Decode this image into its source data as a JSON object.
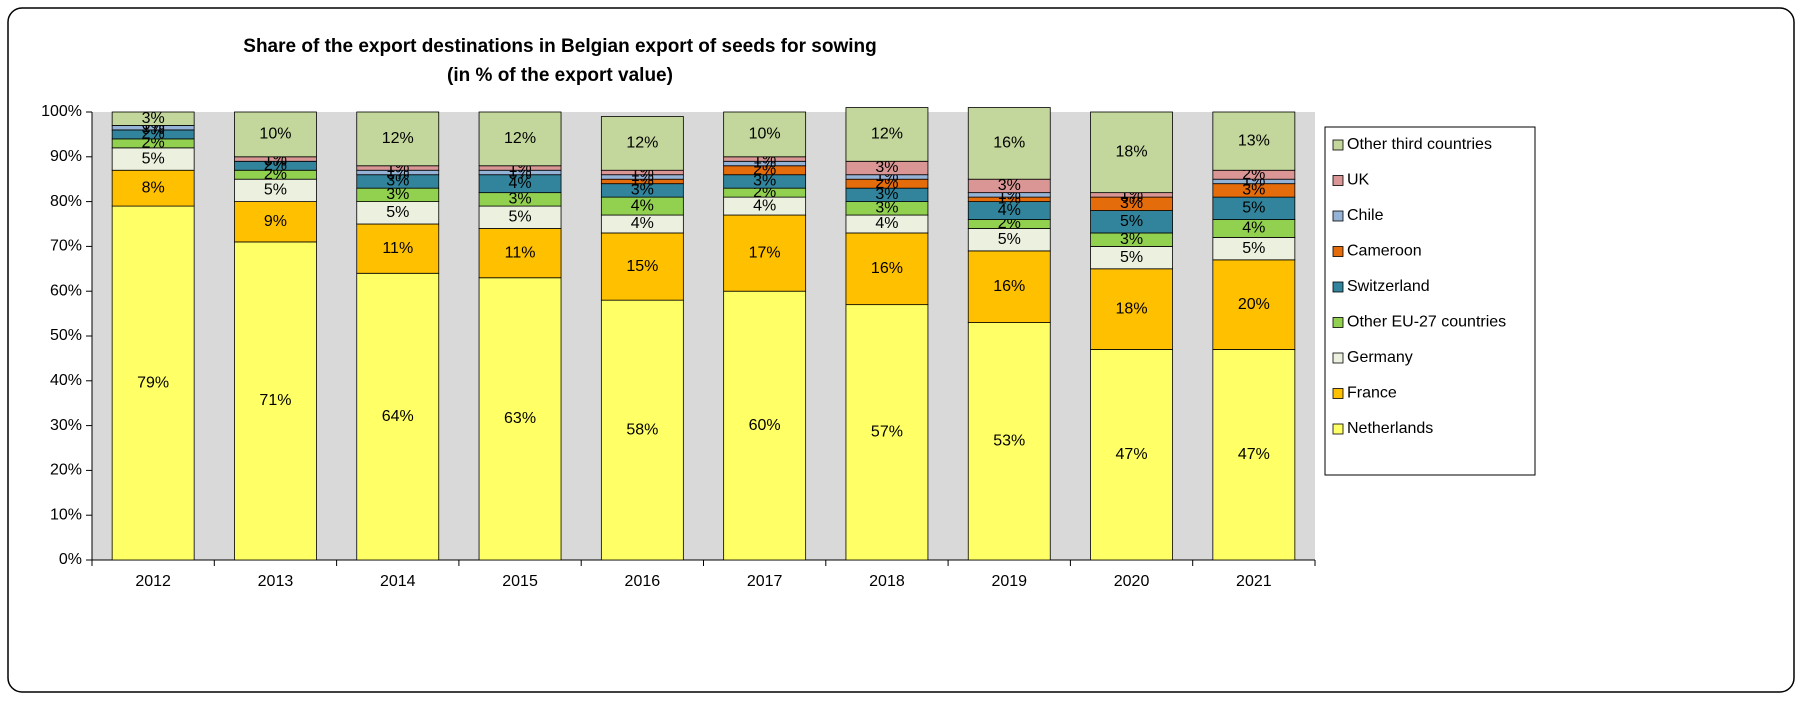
{
  "chart_data": {
    "type": "stacked_bar",
    "title": "Share of the export destinations in Belgian export of seeds for sowing",
    "subtitle": "(in % of the export value)",
    "categories": [
      "2012",
      "2013",
      "2014",
      "2015",
      "2016",
      "2017",
      "2018",
      "2019",
      "2020",
      "2021"
    ],
    "series": [
      {
        "name": "Netherlands",
        "color": "#ffff66",
        "values": [
          79,
          71,
          64,
          63,
          58,
          60,
          57,
          53,
          47,
          47
        ],
        "value_labels": [
          "79%",
          "71%",
          "64%",
          "63%",
          "58%",
          "60%",
          "57%",
          "53%",
          "47%",
          "47%"
        ]
      },
      {
        "name": "France",
        "color": "#ffc000",
        "values": [
          8,
          9,
          11,
          11,
          15,
          17,
          16,
          16,
          18,
          20
        ],
        "value_labels": [
          "8%",
          "9%",
          "11%",
          "11%",
          "15%",
          "17%",
          "16%",
          "16%",
          "18%",
          "20%"
        ]
      },
      {
        "name": "Germany",
        "color": "#ebf1de",
        "values": [
          5,
          5,
          5,
          5,
          4,
          4,
          4,
          5,
          5,
          5
        ],
        "value_labels": [
          "5%",
          "5%",
          "5%",
          "5%",
          "4%",
          "4%",
          "4%",
          "5%",
          "5%",
          "5%"
        ]
      },
      {
        "name": "Other EU-27 countries",
        "color": "#92d050",
        "values": [
          2,
          2,
          3,
          3,
          4,
          2,
          3,
          2,
          3,
          4
        ],
        "value_labels": [
          "2%",
          "2%",
          "3%",
          "3%",
          "4%",
          "2%",
          "3%",
          "2%",
          "3%",
          "4%"
        ]
      },
      {
        "name": "Switzerland",
        "color": "#31849b",
        "values": [
          2,
          2,
          3,
          4,
          3,
          3,
          3,
          4,
          5,
          5
        ],
        "value_labels": [
          "2%",
          "2%",
          "3%",
          "4%",
          "3%",
          "3%",
          "3%",
          "4%",
          "5%",
          "5%"
        ]
      },
      {
        "name": "Cameroon",
        "color": "#e46c0a",
        "values": [
          0,
          0,
          0,
          0,
          1,
          2,
          2,
          1,
          3,
          3
        ],
        "value_labels": [
          "0%",
          "0%",
          "0%",
          "0%",
          "1%",
          "2%",
          "2%",
          "1%",
          "3%",
          "3%"
        ]
      },
      {
        "name": "Chile",
        "color": "#95b3d7",
        "values": [
          1,
          0,
          1,
          1,
          1,
          1,
          1,
          1,
          0,
          1
        ],
        "value_labels": [
          "1%",
          "0%",
          "1%",
          "1%",
          "1%",
          "1%",
          "1%",
          "1%",
          "0%",
          "1%"
        ]
      },
      {
        "name": "UK",
        "color": "#d99694",
        "values": [
          0,
          1,
          1,
          1,
          1,
          1,
          3,
          3,
          1,
          2
        ],
        "value_labels": [
          "0%",
          "1%",
          "1%",
          "1%",
          "1%",
          "1%",
          "3%",
          "3%",
          "1%",
          "2%"
        ]
      },
      {
        "name": "Other third countries",
        "color": "#c3d69b",
        "values": [
          3,
          10,
          12,
          12,
          12,
          10,
          12,
          16,
          18,
          13
        ],
        "value_labels": [
          "3%",
          "10%",
          "12%",
          "12%",
          "12%",
          "10%",
          "12%",
          "16%",
          "18%",
          "13%"
        ]
      }
    ],
    "ylim": [
      0,
      100
    ],
    "yticks": [
      {
        "value": 0,
        "label": "0%"
      },
      {
        "value": 10,
        "label": "10%"
      },
      {
        "value": 20,
        "label": "20%"
      },
      {
        "value": 30,
        "label": "30%"
      },
      {
        "value": 40,
        "label": "40%"
      },
      {
        "value": 50,
        "label": "50%"
      },
      {
        "value": 60,
        "label": "60%"
      },
      {
        "value": 70,
        "label": "70%"
      },
      {
        "value": 80,
        "label": "80%"
      },
      {
        "value": 90,
        "label": "90%"
      },
      {
        "value": 100,
        "label": "100%"
      }
    ],
    "legend": "right"
  }
}
